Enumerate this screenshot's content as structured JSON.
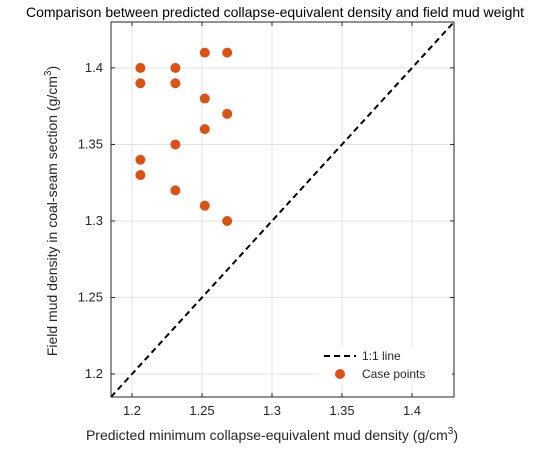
{
  "chart_data": {
    "type": "scatter",
    "title": "Comparison between predicted collapse-equivalent density and field mud weight",
    "xlabel": "Predicted minimum collapse-equivalent mud density (g/cm",
    "xlabel_sup": "3",
    "xlabel_tail": ")",
    "ylabel": "Field mud density in coal-seam section (g/cm",
    "ylabel_sup": "3",
    "ylabel_tail": ")",
    "xlim": [
      1.185,
      1.43
    ],
    "ylim": [
      1.185,
      1.43
    ],
    "xticks": [
      1.2,
      1.25,
      1.3,
      1.35,
      1.4
    ],
    "yticks": [
      1.2,
      1.25,
      1.3,
      1.35,
      1.4
    ],
    "xtick_labels": [
      "1.2",
      "1.25",
      "1.3",
      "1.35",
      "1.4"
    ],
    "ytick_labels": [
      "1.2",
      "1.25",
      "1.3",
      "1.35",
      "1.4"
    ],
    "grid": true,
    "legend_position": "bottom-right",
    "series": [
      {
        "name": "1:1 line",
        "kind": "line",
        "style": "dashed",
        "color": "#000000",
        "x": [
          1.185,
          1.43
        ],
        "y": [
          1.185,
          1.43
        ]
      },
      {
        "name": "Case points",
        "kind": "scatter",
        "color": "#D95319",
        "x": [
          1.206,
          1.206,
          1.206,
          1.206,
          1.231,
          1.231,
          1.231,
          1.231,
          1.252,
          1.252,
          1.252,
          1.252,
          1.268,
          1.268,
          1.268
        ],
        "y": [
          1.4,
          1.39,
          1.34,
          1.33,
          1.4,
          1.39,
          1.35,
          1.32,
          1.41,
          1.38,
          1.36,
          1.31,
          1.41,
          1.37,
          1.3
        ]
      }
    ]
  }
}
